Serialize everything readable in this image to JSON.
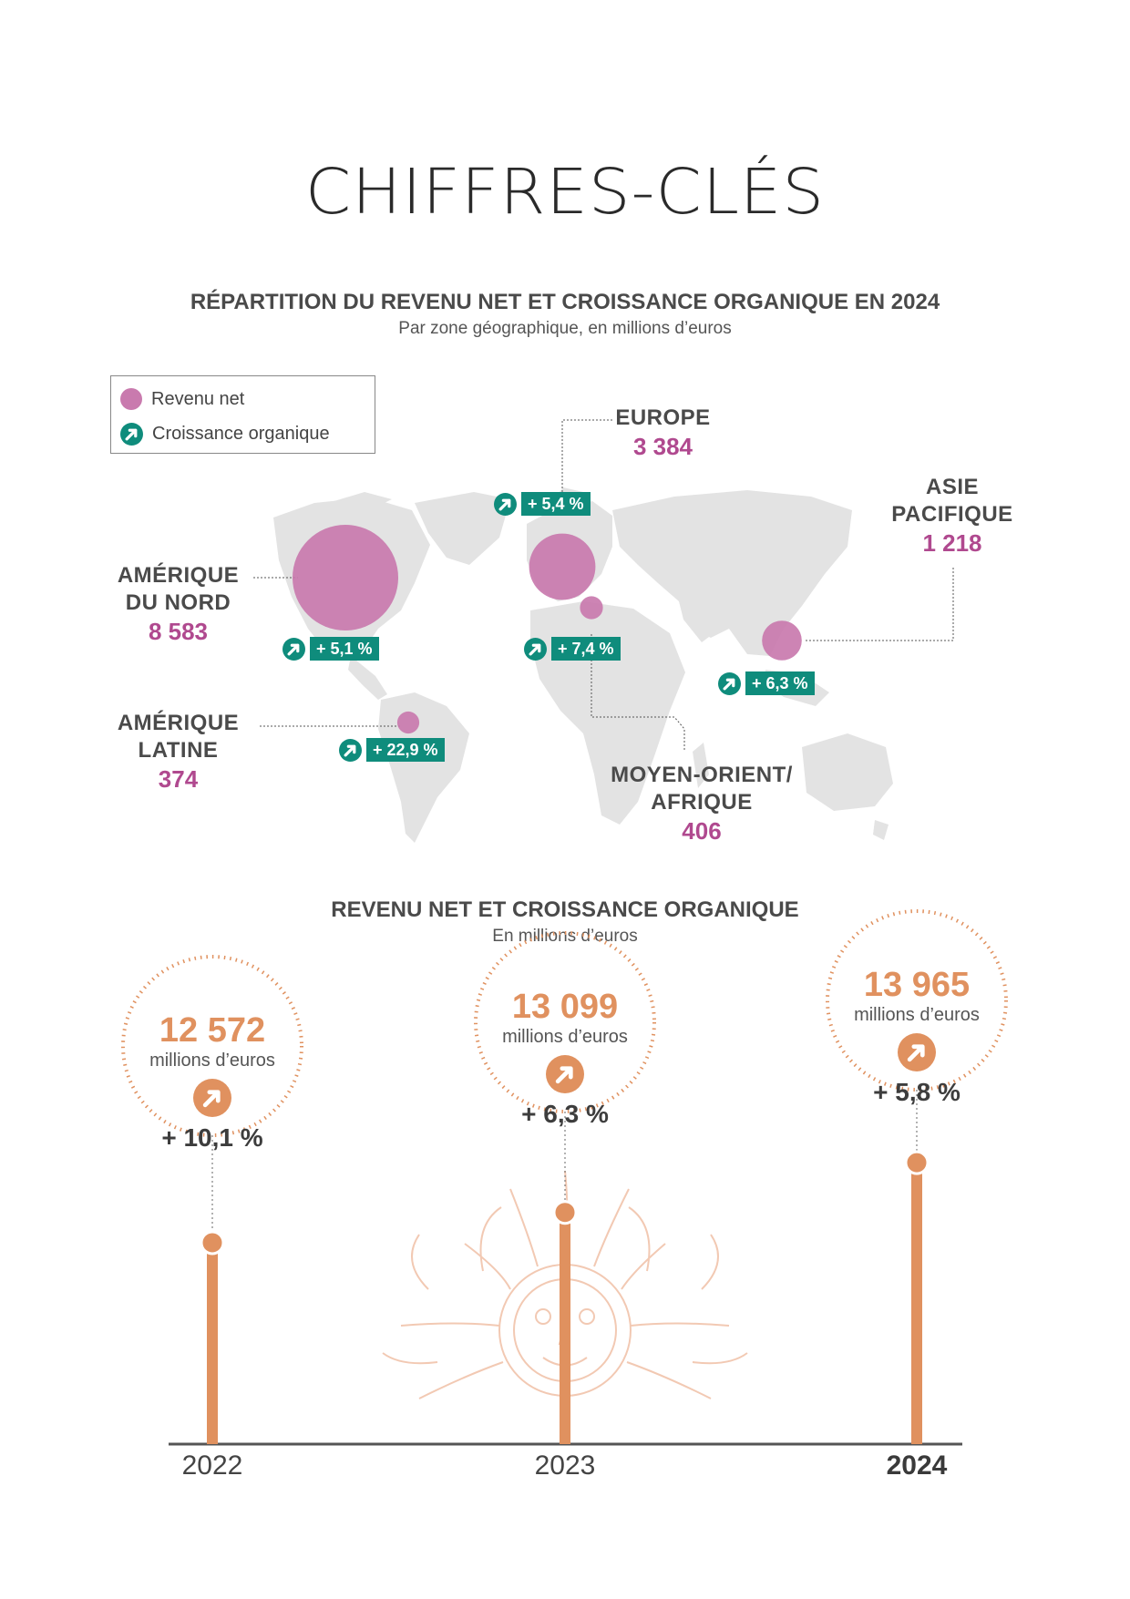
{
  "page_title": "CHIFFRES-CLÉS",
  "map_section": {
    "title": "RÉPARTITION DU REVENU NET ET CROISSANCE ORGANIQUE EN 2024",
    "subtitle": "Par zone géographique, en millions d’euros",
    "legend": {
      "revenue": "Revenu net",
      "growth": "Croissance organique"
    },
    "colors": {
      "revenue": "#c97aae",
      "growth": "#0f8c7c",
      "value_text": "#b0498f",
      "map": "#e3e3e3"
    }
  },
  "chart_data": [
    {
      "type": "bubble-map",
      "unit": "millions d’euros",
      "regions": [
        {
          "name": "AMÉRIQUE DU NORD",
          "name_lines": [
            "AMÉRIQUE",
            "DU NORD"
          ],
          "value_label": "8 583",
          "revenue": 8583,
          "growth_label": "+ 5,1 %",
          "growth": 5.1
        },
        {
          "name": "EUROPE",
          "name_lines": [
            "EUROPE"
          ],
          "value_label": "3 384",
          "revenue": 3384,
          "growth_label": "+ 5,4 %",
          "growth": 5.4
        },
        {
          "name": "ASIE PACIFIQUE",
          "name_lines": [
            "ASIE",
            "PACIFIQUE"
          ],
          "value_label": "1 218",
          "revenue": 1218,
          "growth_label": "+ 6,3 %",
          "growth": 6.3
        },
        {
          "name": "AMÉRIQUE LATINE",
          "name_lines": [
            "AMÉRIQUE",
            "LATINE"
          ],
          "value_label": "374",
          "revenue": 374,
          "growth_label": "+ 22,9 %",
          "growth": 22.9
        },
        {
          "name": "MOYEN-ORIENT/ AFRIQUE",
          "name_lines": [
            "MOYEN-ORIENT/",
            "AFRIQUE"
          ],
          "value_label": "406",
          "revenue": 406,
          "growth_label": "+ 7,4 %",
          "growth": 7.4
        }
      ]
    },
    {
      "type": "bar",
      "title": "REVENU NET ET CROISSANCE ORGANIQUE",
      "subtitle": "En millions d’euros",
      "categories": [
        "2022",
        "2023",
        "2024"
      ],
      "values": [
        12572,
        13099,
        13965
      ],
      "value_labels": [
        "12 572",
        "13 099",
        "13 965"
      ],
      "unit_label": "millions d’euros",
      "growth": [
        10.1,
        6.3,
        5.8
      ],
      "growth_labels": [
        "+ 10,1 %",
        "+ 6,3 %",
        "+ 5,8 %"
      ],
      "color": "#e0915f"
    }
  ]
}
